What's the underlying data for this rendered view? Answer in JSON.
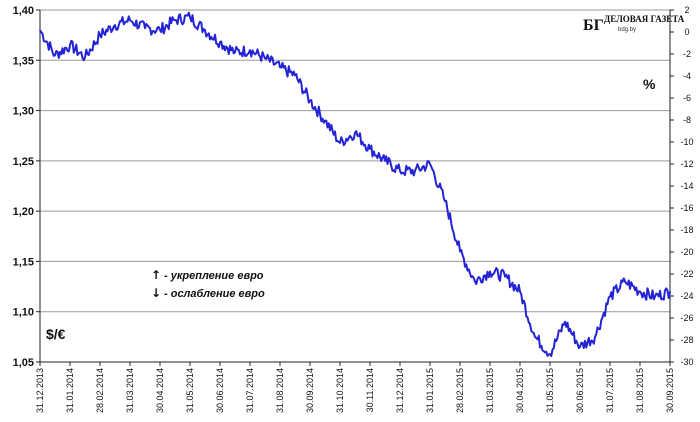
{
  "chart_data": {
    "type": "line",
    "left_axis": {
      "unit": "$/€",
      "range": [
        1.05,
        1.4
      ],
      "ticks": [
        "1,05",
        "1,10",
        "1,15",
        "1,20",
        "1,25",
        "1,30",
        "1,35",
        "1,40"
      ]
    },
    "right_axis": {
      "unit": "%",
      "range": [
        -30,
        2
      ],
      "ticks": [
        "-30",
        "-28",
        "-26",
        "-24",
        "-22",
        "-20",
        "-18",
        "-16",
        "-14",
        "-12",
        "-10",
        "-8",
        "-6",
        "-4",
        "-2",
        "0",
        "2"
      ]
    },
    "x_axis": {
      "ticks": [
        "31.12.2013",
        "31.01.2014",
        "28.02.2014",
        "31.03.2014",
        "30.04.2014",
        "31.05.2014",
        "30.06.2014",
        "31.07.2014",
        "31.08.2014",
        "30.09.2014",
        "31.10.2014",
        "30.11.2014",
        "31.12.2014",
        "31.01.2015",
        "28.02.2015",
        "31.03.2015",
        "30.04.2015",
        "31.05.2015",
        "30.06.2015",
        "31.07.2015",
        "31.08.2015",
        "30.09.2015"
      ]
    },
    "grid": "horizontal",
    "legend": {
      "up_arrow": "↑",
      "up_label": "- укрепление евро",
      "down_arrow": "↓",
      "down_label": "- ослабление евро"
    },
    "logo": {
      "mark": "БГ",
      "title": "ДЕЛОВАЯ ГАЗЕТА",
      "subtitle": "bdg.by"
    },
    "series_color": "#2424d6",
    "series": [
      {
        "x": [
          0,
          0.5,
          1,
          1.5,
          2,
          2.5,
          3,
          3.5,
          4,
          4.5,
          5,
          5.5,
          6,
          6.5,
          7,
          7.5,
          8,
          8.5,
          9,
          9.5,
          10,
          10.5,
          11,
          11.5,
          12,
          12.5,
          13,
          13.5,
          14,
          14.5,
          15,
          15.5,
          16,
          16.5,
          17,
          17.5,
          18,
          18.5,
          19,
          19.5,
          20,
          20.5,
          21
        ],
        "y": [
          1.38,
          1.355,
          1.365,
          1.353,
          1.375,
          1.385,
          1.39,
          1.382,
          1.38,
          1.39,
          1.393,
          1.38,
          1.368,
          1.358,
          1.36,
          1.352,
          1.343,
          1.335,
          1.31,
          1.29,
          1.268,
          1.278,
          1.262,
          1.25,
          1.24,
          1.24,
          1.247,
          1.21,
          1.16,
          1.13,
          1.14,
          1.135,
          1.12,
          1.075,
          1.058,
          1.09,
          1.065,
          1.075,
          1.115,
          1.13,
          1.12,
          1.115,
          1.12
        ]
      }
    ]
  }
}
